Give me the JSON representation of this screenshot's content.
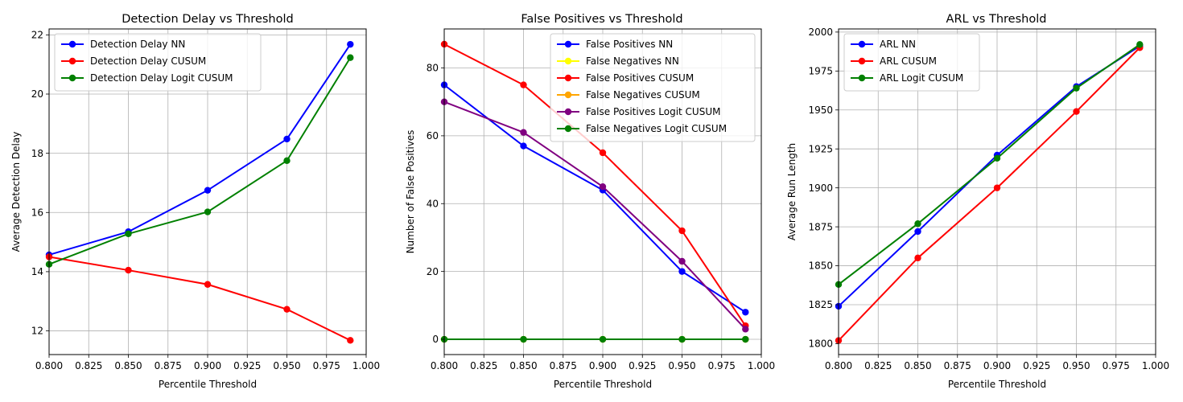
{
  "chart_data": [
    {
      "type": "line",
      "title": "Detection Delay vs Threshold",
      "xlabel": "Percentile Threshold",
      "ylabel": "Average Detection Delay",
      "xlim": [
        0.8,
        1.0
      ],
      "ylim": [
        11.2,
        22.2
      ],
      "xticks": [
        0.8,
        0.825,
        0.85,
        0.875,
        0.9,
        0.925,
        0.95,
        0.975,
        1.0
      ],
      "xtick_labels": [
        "0.800",
        "0.825",
        "0.850",
        "0.875",
        "0.900",
        "0.925",
        "0.950",
        "0.975",
        "1.000"
      ],
      "yticks": [
        12,
        14,
        16,
        18,
        20,
        22
      ],
      "ytick_labels": [
        "12",
        "14",
        "16",
        "18",
        "20",
        "22"
      ],
      "grid": true,
      "legend_position": "upper-left",
      "x": [
        0.8,
        0.85,
        0.9,
        0.95,
        0.99
      ],
      "series": [
        {
          "name": "Detection Delay NN",
          "color": "#0000ff",
          "values": [
            14.57,
            15.35,
            16.75,
            18.48,
            21.68
          ]
        },
        {
          "name": "Detection Delay CUSUM",
          "color": "#ff0000",
          "values": [
            14.5,
            14.05,
            13.57,
            12.73,
            11.68
          ]
        },
        {
          "name": "Detection Delay Logit CUSUM",
          "color": "#008000",
          "values": [
            14.25,
            15.28,
            16.02,
            17.75,
            21.23
          ]
        }
      ]
    },
    {
      "type": "line",
      "title": "False Positives vs Threshold",
      "xlabel": "Percentile Threshold",
      "ylabel": "Number of False Positives",
      "xlim": [
        0.8,
        1.0
      ],
      "ylim": [
        -4.5,
        91.5
      ],
      "xticks": [
        0.8,
        0.825,
        0.85,
        0.875,
        0.9,
        0.925,
        0.95,
        0.975,
        1.0
      ],
      "xtick_labels": [
        "0.800",
        "0.825",
        "0.850",
        "0.875",
        "0.900",
        "0.925",
        "0.950",
        "0.975",
        "1.000"
      ],
      "yticks": [
        0,
        20,
        40,
        60,
        80
      ],
      "ytick_labels": [
        "0",
        "20",
        "40",
        "60",
        "80"
      ],
      "grid": true,
      "legend_position": "upper-right",
      "x": [
        0.8,
        0.85,
        0.9,
        0.95,
        0.99
      ],
      "series": [
        {
          "name": "False Positives NN",
          "color": "#0000ff",
          "values": [
            75,
            57,
            44,
            20,
            8
          ]
        },
        {
          "name": "False Negatives NN",
          "color": "#ffff00",
          "values": [
            0,
            0,
            0,
            0,
            0
          ]
        },
        {
          "name": "False Positives CUSUM",
          "color": "#ff0000",
          "values": [
            87,
            75,
            55,
            32,
            4
          ]
        },
        {
          "name": "False Negatives CUSUM",
          "color": "#ffa500",
          "values": [
            0,
            0,
            0,
            0,
            0
          ]
        },
        {
          "name": "False Positives Logit CUSUM",
          "color": "#800080",
          "values": [
            70,
            61,
            45,
            23,
            3
          ]
        },
        {
          "name": "False Negatives Logit CUSUM",
          "color": "#008000",
          "values": [
            0,
            0,
            0,
            0,
            0
          ]
        }
      ]
    },
    {
      "type": "line",
      "title": "ARL vs Threshold",
      "xlabel": "Percentile Threshold",
      "ylabel": "Average Run Length",
      "xlim": [
        0.8,
        1.0
      ],
      "ylim": [
        1793,
        2002
      ],
      "xticks": [
        0.8,
        0.825,
        0.85,
        0.875,
        0.9,
        0.925,
        0.95,
        0.975,
        1.0
      ],
      "xtick_labels": [
        "0.800",
        "0.825",
        "0.850",
        "0.875",
        "0.900",
        "0.925",
        "0.950",
        "0.975",
        "1.000"
      ],
      "yticks": [
        1800,
        1825,
        1850,
        1875,
        1900,
        1925,
        1950,
        1975,
        2000
      ],
      "ytick_labels": [
        "1800",
        "1825",
        "1850",
        "1875",
        "1900",
        "1925",
        "1950",
        "1975",
        "2000"
      ],
      "grid": true,
      "legend_position": "upper-left",
      "x": [
        0.8,
        0.85,
        0.9,
        0.95,
        0.99
      ],
      "series": [
        {
          "name": "ARL NN",
          "color": "#0000ff",
          "values": [
            1824,
            1872,
            1921,
            1965,
            1991
          ]
        },
        {
          "name": "ARL CUSUM",
          "color": "#ff0000",
          "values": [
            1802,
            1855,
            1900,
            1949,
            1990
          ]
        },
        {
          "name": "ARL Logit CUSUM",
          "color": "#008000",
          "values": [
            1838,
            1877,
            1919,
            1964,
            1992
          ]
        }
      ]
    }
  ]
}
